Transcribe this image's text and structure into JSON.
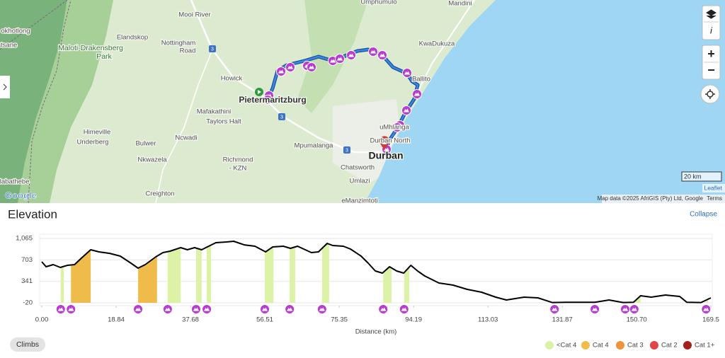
{
  "map": {
    "labels": [
      "Mooi River",
      "Elandskop",
      "Maloti-Drakensberg",
      "Park",
      "Nottingham",
      "Road",
      "okhotlong",
      "atsane",
      "Howick",
      "Pietermaritzburg",
      "Mafakathini",
      "Taylors Halt",
      "Himeville",
      "Underberg",
      "Bulwer",
      "Ncwadi",
      "Nkwazela",
      "Mpumalanga",
      "Richmond",
      "- KZN",
      "Chatsworth",
      "Durban North",
      "Durban",
      "uMhlanga",
      "Umlazi",
      "Creighton",
      "eManzimtoti",
      "hlabathebe",
      "Ballito",
      "KwaDukuza",
      "Mandini",
      "Umphumulo"
    ],
    "road_labels": [
      "3",
      "3",
      "3"
    ],
    "controls": {
      "info": "i",
      "zoom_in": "+",
      "zoom_out": "−"
    },
    "scale": "20 km",
    "leaflet": "Leaflet",
    "attribution": "Map data ©2025 AfriGIS (Pty) Ltd, Google",
    "terms": "Terms",
    "logo": "Google"
  },
  "panel": {
    "collapse": "Collapse",
    "climbs_button": "Climbs"
  },
  "chart_data": {
    "type": "line",
    "title": "Elevation",
    "xlabel": "Distance (km)",
    "color": "#000000",
    "grid": true,
    "x": [
      0,
      1.1,
      2.9,
      4.7,
      6.5,
      8.3,
      10.0,
      12.4,
      14.5,
      17.2,
      19.9,
      22.6,
      24.4,
      26.2,
      28.9,
      30.7,
      32.5,
      35.2,
      36.9,
      38.7,
      40.5,
      42.3,
      44.1,
      46.8,
      48.6,
      51.3,
      54.0,
      56.7,
      58.5,
      61.2,
      63.0,
      64.8,
      68.3,
      70.1,
      72.3,
      73.7,
      76.4,
      78.2,
      80.9,
      82.7,
      84.5,
      86.3,
      88.1,
      89.9,
      91.7,
      93.5,
      95.2,
      97.0,
      100.6,
      104.2,
      107.8,
      111.4,
      115.0,
      117.7,
      122.2,
      125.7,
      129.3,
      132.9,
      136.5,
      140.1,
      143.7,
      147.3,
      149.9,
      151.7,
      154.4,
      158.0,
      161.6,
      163.4,
      167.0,
      169.5
    ],
    "values": [
      671,
      588,
      624,
      576,
      612,
      624,
      731,
      874,
      838,
      814,
      767,
      648,
      564,
      624,
      755,
      826,
      850,
      910,
      874,
      910,
      874,
      934,
      993,
      1005,
      1017,
      957,
      934,
      838,
      922,
      934,
      898,
      934,
      826,
      838,
      981,
      946,
      934,
      886,
      767,
      648,
      516,
      481,
      588,
      516,
      481,
      612,
      516,
      433,
      314,
      278,
      206,
      159,
      75,
      28,
      75,
      63,
      -15,
      -10,
      -10,
      -10,
      28,
      -15,
      -10,
      99,
      75,
      111,
      87,
      -10,
      -15,
      63
    ],
    "xlim": [
      0,
      169.5
    ],
    "ylim": [
      -20,
      1065
    ],
    "xticks": [
      {
        "value": 0,
        "label": "0.00"
      },
      18.84,
      37.68,
      56.51,
      75.35,
      94.19,
      113.03,
      131.87,
      {
        "value": 150.7,
        "label": "150.70"
      },
      169.5
    ],
    "yticks": [
      -20,
      341,
      703,
      {
        "value": 1065,
        "label": "1,065"
      }
    ],
    "climbs": [
      {
        "start": 4.8,
        "end": 5.6,
        "color": "#dcf2a6"
      },
      {
        "start": 7.4,
        "end": 12.4,
        "color": "#efbc4c"
      },
      {
        "start": 24.4,
        "end": 29.2,
        "color": "#efbc4c"
      },
      {
        "start": 31.9,
        "end": 35.2,
        "color": "#dcf2a6"
      },
      {
        "start": 39.1,
        "end": 40.5,
        "color": "#dcf2a6"
      },
      {
        "start": 41.8,
        "end": 42.9,
        "color": "#dcf2a6"
      },
      {
        "start": 56.5,
        "end": 58.7,
        "color": "#dcf2a6"
      },
      {
        "start": 62.8,
        "end": 64.2,
        "color": "#dcf2a6"
      },
      {
        "start": 71.0,
        "end": 72.8,
        "color": "#dcf2a6"
      },
      {
        "start": 86.5,
        "end": 88.6,
        "color": "#dcf2a6"
      },
      {
        "start": 91.8,
        "end": 93.1,
        "color": "#dcf2a6"
      },
      {
        "start": 129.9,
        "end": 130.6,
        "color": "#dcf2a6"
      },
      {
        "start": 140.1,
        "end": 140.6,
        "color": "#dcf2a6"
      },
      {
        "start": 147.8,
        "end": 148.3,
        "color": "#dcf2a6"
      },
      {
        "start": 150.1,
        "end": 151.7,
        "color": "#dcf2a6"
      },
      {
        "start": 168.3,
        "end": 168.8,
        "color": "#dcf2a6"
      }
    ],
    "legend": [
      {
        "name": "<Cat 4",
        "color": "#d9f2a5"
      },
      {
        "name": "Cat 4",
        "color": "#f0bd4a"
      },
      {
        "name": "Cat 3",
        "color": "#f0913c"
      },
      {
        "name": "Cat 2",
        "color": "#e04646"
      },
      {
        "name": "Cat 1+",
        "color": "#a3201d"
      }
    ]
  }
}
